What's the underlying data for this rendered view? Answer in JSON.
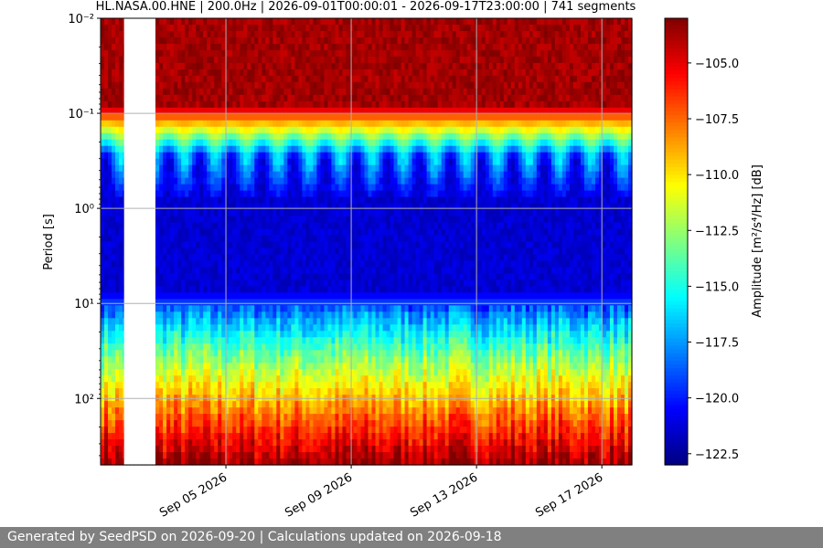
{
  "chart_data": {
    "type": "heatmap",
    "title": "HL.NASA.00.HNE | 200.0Hz | 2026-09-01T00:00:01 - 2026-09-17T23:00:00 | 741 segments",
    "ylabel": "Period [s]",
    "colorbar_label": "Amplitude [m²/s⁴/Hz] [dB]",
    "x_ticks": [
      "Sep 05 2026",
      "Sep 09 2026",
      "Sep 13 2026",
      "Sep 17 2026"
    ],
    "x_tick_dates": [
      "2026-09-05",
      "2026-09-09",
      "2026-09-13",
      "2026-09-17"
    ],
    "xlim": [
      "2026-09-01T00:00:01",
      "2026-09-17T23:00:00"
    ],
    "y_scale": "log",
    "y_ticks": [
      {
        "value": 0.01,
        "label": "10⁻²"
      },
      {
        "value": 0.1,
        "label": "10⁻¹"
      },
      {
        "value": 1,
        "label": "10⁰"
      },
      {
        "value": 10,
        "label": "10¹"
      },
      {
        "value": 100,
        "label": "10²"
      }
    ],
    "ylim": [
      0.01,
      500
    ],
    "y_inverted": true,
    "grid": true,
    "colormap": "jet",
    "colorbar_ticks": [
      -105.0,
      -107.5,
      -110.0,
      -112.5,
      -115.0,
      -117.5,
      -120.0,
      -122.5
    ],
    "colorbar_range": [
      -123,
      -103
    ],
    "data_gap": [
      "2026-09-01T18:00",
      "2026-09-02T18:00"
    ],
    "segments": 741
  },
  "footer": {
    "text": "Generated by SeedPSD on 2026-09-20 | Calculations updated on 2026-09-18"
  }
}
